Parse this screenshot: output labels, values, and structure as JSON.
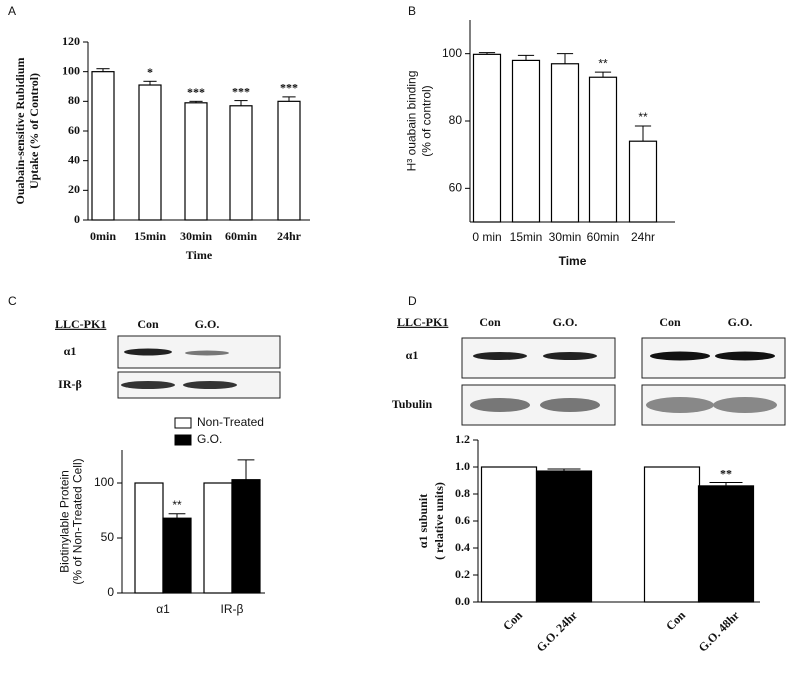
{
  "chart_data": [
    {
      "type": "bar",
      "panel": "A",
      "ylabel": [
        "Ouabain-sensitive Rubidium",
        "Uptake (% of Control)"
      ],
      "xlabel": "Time",
      "categories": [
        "0min",
        "15min",
        "30min",
        "60min",
        "24hr"
      ],
      "values": [
        100,
        91,
        79,
        77,
        80
      ],
      "errors": [
        2,
        2.5,
        1,
        3.5,
        3
      ],
      "annotations": [
        null,
        "*",
        "***",
        "***",
        "***"
      ],
      "color": "#ffffff",
      "ylim": [
        0,
        120
      ],
      "yticks": [
        0,
        20,
        40,
        60,
        80,
        100,
        120
      ]
    },
    {
      "type": "bar",
      "panel": "B",
      "ylabel": [
        "H³ ouabain binding",
        "(% of control)"
      ],
      "xlabel": "Time",
      "categories": [
        "0 min",
        "15min",
        "30min",
        "60min",
        "24hr"
      ],
      "values": [
        99.8,
        98,
        97,
        93,
        74
      ],
      "errors": [
        0.5,
        1.5,
        3,
        1.5,
        4.5
      ],
      "annotations": [
        null,
        null,
        null,
        "**",
        "**"
      ],
      "color": "#ffffff",
      "ylim": [
        50,
        110
      ],
      "yticks": [
        60,
        80,
        100
      ]
    },
    {
      "type": "grouped-bar",
      "panel": "C",
      "ylabel": [
        "Biotinylable Protein",
        "(% of Non-Treated Cell)"
      ],
      "categories": [
        "α1",
        "IR-β"
      ],
      "ylim": [
        0,
        130
      ],
      "yticks": [
        0,
        50,
        100
      ],
      "series": [
        {
          "name": "Non-Treated",
          "color": "#ffffff",
          "values": [
            100,
            100
          ],
          "errors": [
            0,
            0
          ],
          "annotations": [
            null,
            null
          ]
        },
        {
          "name": "G.O.",
          "color": "#000000",
          "values": [
            68,
            103
          ],
          "errors": [
            4,
            18
          ],
          "annotations": [
            "**",
            null
          ]
        }
      ]
    },
    {
      "type": "bar",
      "panel": "D",
      "ylabel": [
        "α1 subunit",
        "( relative units)"
      ],
      "categories": [
        "Con",
        "G.O. 24hr",
        "Con",
        "G.O. 48hr"
      ],
      "values": [
        1.0,
        0.97,
        1.0,
        0.86
      ],
      "errors": [
        0,
        0.015,
        0,
        0.025
      ],
      "annotations": [
        null,
        null,
        null,
        "**"
      ],
      "colors": [
        "#ffffff",
        "#000000",
        "#ffffff",
        "#000000"
      ],
      "ylim": [
        0,
        1.2
      ],
      "yticks": [
        {
          "value": 0,
          "label": "0.0"
        },
        0.2,
        0.4,
        0.6,
        0.8,
        {
          "value": 1,
          "label": "1.0"
        },
        1.2
      ]
    }
  ],
  "blots": {
    "c": {
      "cell": "LLC-PK1",
      "lanes": [
        "Con",
        "G.O."
      ],
      "rows": [
        "α1",
        "IR-β"
      ]
    },
    "d": {
      "cell": "LLC-PK1",
      "lanes": [
        "Con",
        "G.O.",
        "Con",
        "G.O."
      ],
      "rows": [
        "α1",
        "Tubulin"
      ]
    }
  }
}
